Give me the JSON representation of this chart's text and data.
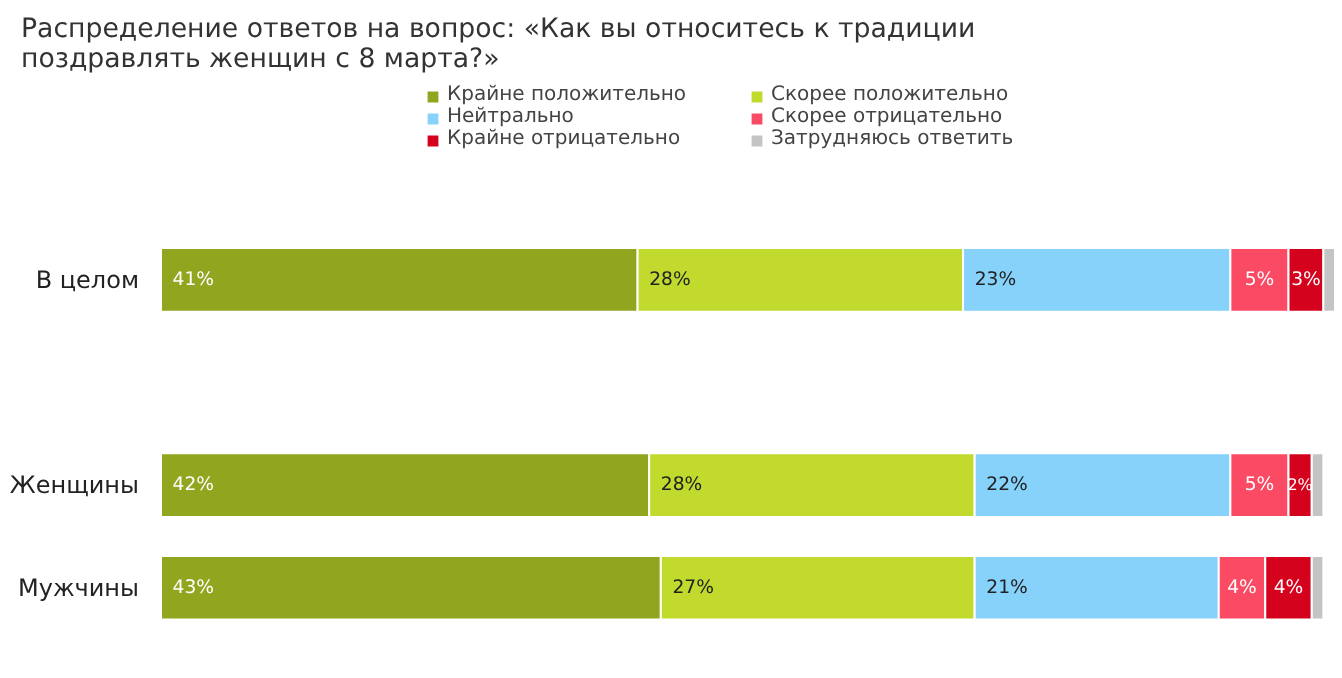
{
  "chart_data": {
    "type": "bar",
    "orientation": "horizontal",
    "stacked": true,
    "title": "Распределение ответов на вопрос: «Как вы относитесь к традиции поздравлять женщин с 8 марта?»",
    "categories": [
      "В целом",
      null,
      "Женщины",
      "Мужчины"
    ],
    "legend": "top",
    "series": [
      {
        "name": "Крайне положительно",
        "color": "#92a51f",
        "values": [
          41,
          null,
          42,
          43
        ],
        "value_labels": [
          "41%",
          null,
          "42%",
          "43%"
        ]
      },
      {
        "name": "Скорее положительно",
        "color": "#c2da2d",
        "values": [
          28,
          null,
          28,
          27
        ],
        "value_labels": [
          "28%",
          null,
          "28%",
          "27%"
        ]
      },
      {
        "name": "Нейтрально",
        "color": "#86d2fb",
        "values": [
          23,
          null,
          22,
          21
        ],
        "value_labels": [
          "23%",
          null,
          "22%",
          "21%"
        ]
      },
      {
        "name": "Скорее отрицательно",
        "color": "#fa4a64",
        "values": [
          5,
          null,
          5,
          4
        ],
        "value_labels": [
          "5%",
          null,
          "5%",
          "4%"
        ]
      },
      {
        "name": "Крайне отрицательно",
        "color": "#d4021d",
        "values": [
          3,
          null,
          2,
          4
        ],
        "value_labels": [
          "3%",
          null,
          "2%",
          "4%"
        ]
      },
      {
        "name": "Затрудняюсь ответить",
        "color": "#c4c4c4",
        "values": [
          1,
          null,
          1,
          1
        ],
        "value_labels": [
          null,
          null,
          null,
          null
        ]
      }
    ]
  }
}
